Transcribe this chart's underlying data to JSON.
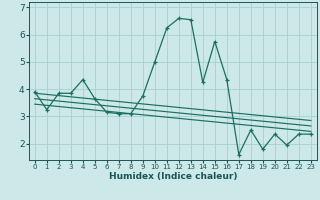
{
  "title": "",
  "xlabel": "Humidex (Indice chaleur)",
  "background_color": "#cce8e8",
  "grid_color": "#aad4d4",
  "line_color": "#1a7060",
  "x_values": [
    0,
    1,
    2,
    3,
    4,
    5,
    6,
    7,
    8,
    9,
    10,
    11,
    12,
    13,
    14,
    15,
    16,
    17,
    18,
    19,
    20,
    21,
    22,
    23
  ],
  "y_main": [
    3.9,
    3.25,
    3.85,
    3.85,
    4.35,
    3.65,
    3.15,
    3.1,
    3.1,
    3.75,
    5.0,
    6.25,
    6.6,
    6.55,
    4.25,
    5.75,
    4.35,
    1.6,
    2.5,
    1.8,
    2.35,
    1.95,
    2.35,
    2.35
  ],
  "xlim_min": -0.5,
  "xlim_max": 23.5,
  "ylim_min": 1.4,
  "ylim_max": 7.2,
  "yticks": [
    2,
    3,
    4,
    5,
    6,
    7
  ],
  "xticks": [
    0,
    1,
    2,
    3,
    4,
    5,
    6,
    7,
    8,
    9,
    10,
    11,
    12,
    13,
    14,
    15,
    16,
    17,
    18,
    19,
    20,
    21,
    22,
    23
  ],
  "regression_lines": [
    {
      "x_start": 0,
      "x_end": 23,
      "y_start": 3.85,
      "y_end": 2.85
    },
    {
      "x_start": 0,
      "x_end": 23,
      "y_start": 3.65,
      "y_end": 2.65
    },
    {
      "x_start": 0,
      "x_end": 23,
      "y_start": 3.45,
      "y_end": 2.45
    }
  ],
  "tick_color": "#1a5555",
  "xlabel_fontsize": 6.5,
  "ytick_fontsize": 6.5,
  "xtick_fontsize": 5.0
}
